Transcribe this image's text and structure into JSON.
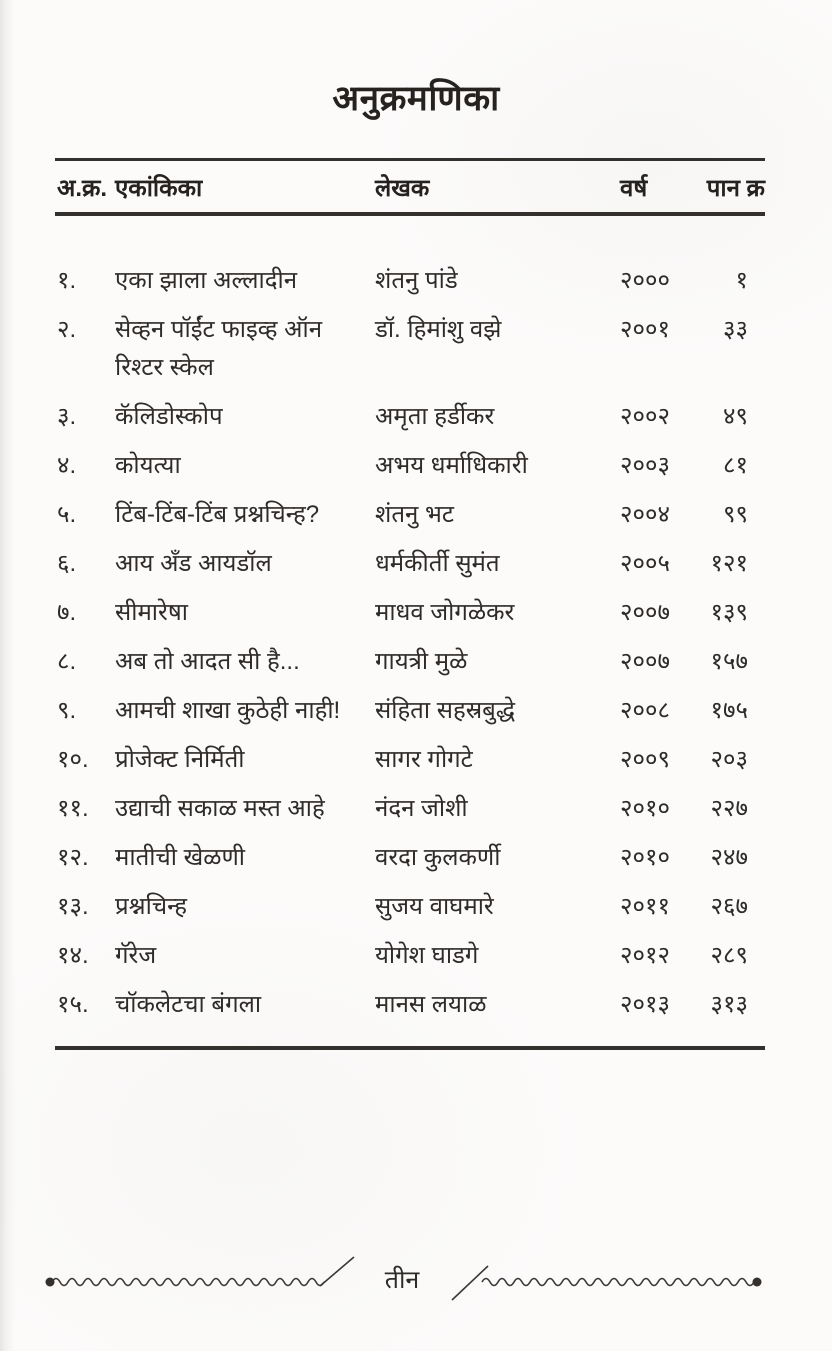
{
  "page": {
    "title": "अनुक्रमणिका",
    "footer_page_label": "तीन"
  },
  "table": {
    "headers": {
      "serial": "अ.क्र.",
      "title": "एकांकिका",
      "author": "लेखक",
      "year": "वर्ष",
      "page": "पान क्र"
    },
    "rows": [
      {
        "serial": "१.",
        "title": "एका झाला अल्लादीन",
        "author": "शंतनु पांडे",
        "year": "२०००",
        "page": "१"
      },
      {
        "serial": "२.",
        "title": "सेव्हन पॉईंट फाइव्ह ऑन रिश्टर स्केल",
        "author": "डॉ. हिमांशु वझे",
        "year": "२००१",
        "page": "३३"
      },
      {
        "serial": "३.",
        "title": "कॅलिडोस्कोप",
        "author": "अमृता हर्डीकर",
        "year": "२००२",
        "page": "४९"
      },
      {
        "serial": "४.",
        "title": "कोयत्या",
        "author": "अभय धर्माधिकारी",
        "year": "२००३",
        "page": "८१"
      },
      {
        "serial": "५.",
        "title": "टिंब-टिंब-टिंब प्रश्नचिन्ह?",
        "author": "शंतनु भट",
        "year": "२००४",
        "page": "९९"
      },
      {
        "serial": "६.",
        "title": "आय अँड आयडॉल",
        "author": "धर्मकीर्ती सुमंत",
        "year": "२००५",
        "page": "१२१"
      },
      {
        "serial": "७.",
        "title": "सीमारेषा",
        "author": "माधव जोगळेकर",
        "year": "२००७",
        "page": "१३९"
      },
      {
        "serial": "८.",
        "title": "अब तो आदत सी है...",
        "author": "गायत्री मुळे",
        "year": "२००७",
        "page": "१५७"
      },
      {
        "serial": "९.",
        "title": "आमची शाखा कुठेही नाही!",
        "author": "संहिता सहस्रबुद्धे",
        "year": "२००८",
        "page": "१७५"
      },
      {
        "serial": "१०.",
        "title": "प्रोजेक्ट निर्मिती",
        "author": "सागर गोगटे",
        "year": "२००९",
        "page": "२०३"
      },
      {
        "serial": "११.",
        "title": "उद्याची सकाळ मस्त आहे",
        "author": "नंदन जोशी",
        "year": "२०१०",
        "page": "२२७"
      },
      {
        "serial": "१२.",
        "title": "मातीची खेळणी",
        "author": "वरदा कुलकर्णी",
        "year": "२०१०",
        "page": "२४७"
      },
      {
        "serial": "१३.",
        "title": "प्रश्नचिन्ह",
        "author": "सुजय वाघमारे",
        "year": "२०११",
        "page": "२६७"
      },
      {
        "serial": "१४.",
        "title": "गॅरेज",
        "author": "योगेश घाडगे",
        "year": "२०१२",
        "page": "२८९"
      },
      {
        "serial": "१५.",
        "title": "चॉकलेटचा बंगला",
        "author": "मानस लयाळ",
        "year": "२०१३",
        "page": "३१३"
      }
    ]
  },
  "colors": {
    "paper": "#fcfbfa",
    "ink": "#2e2b29",
    "rule": "#33302d"
  }
}
